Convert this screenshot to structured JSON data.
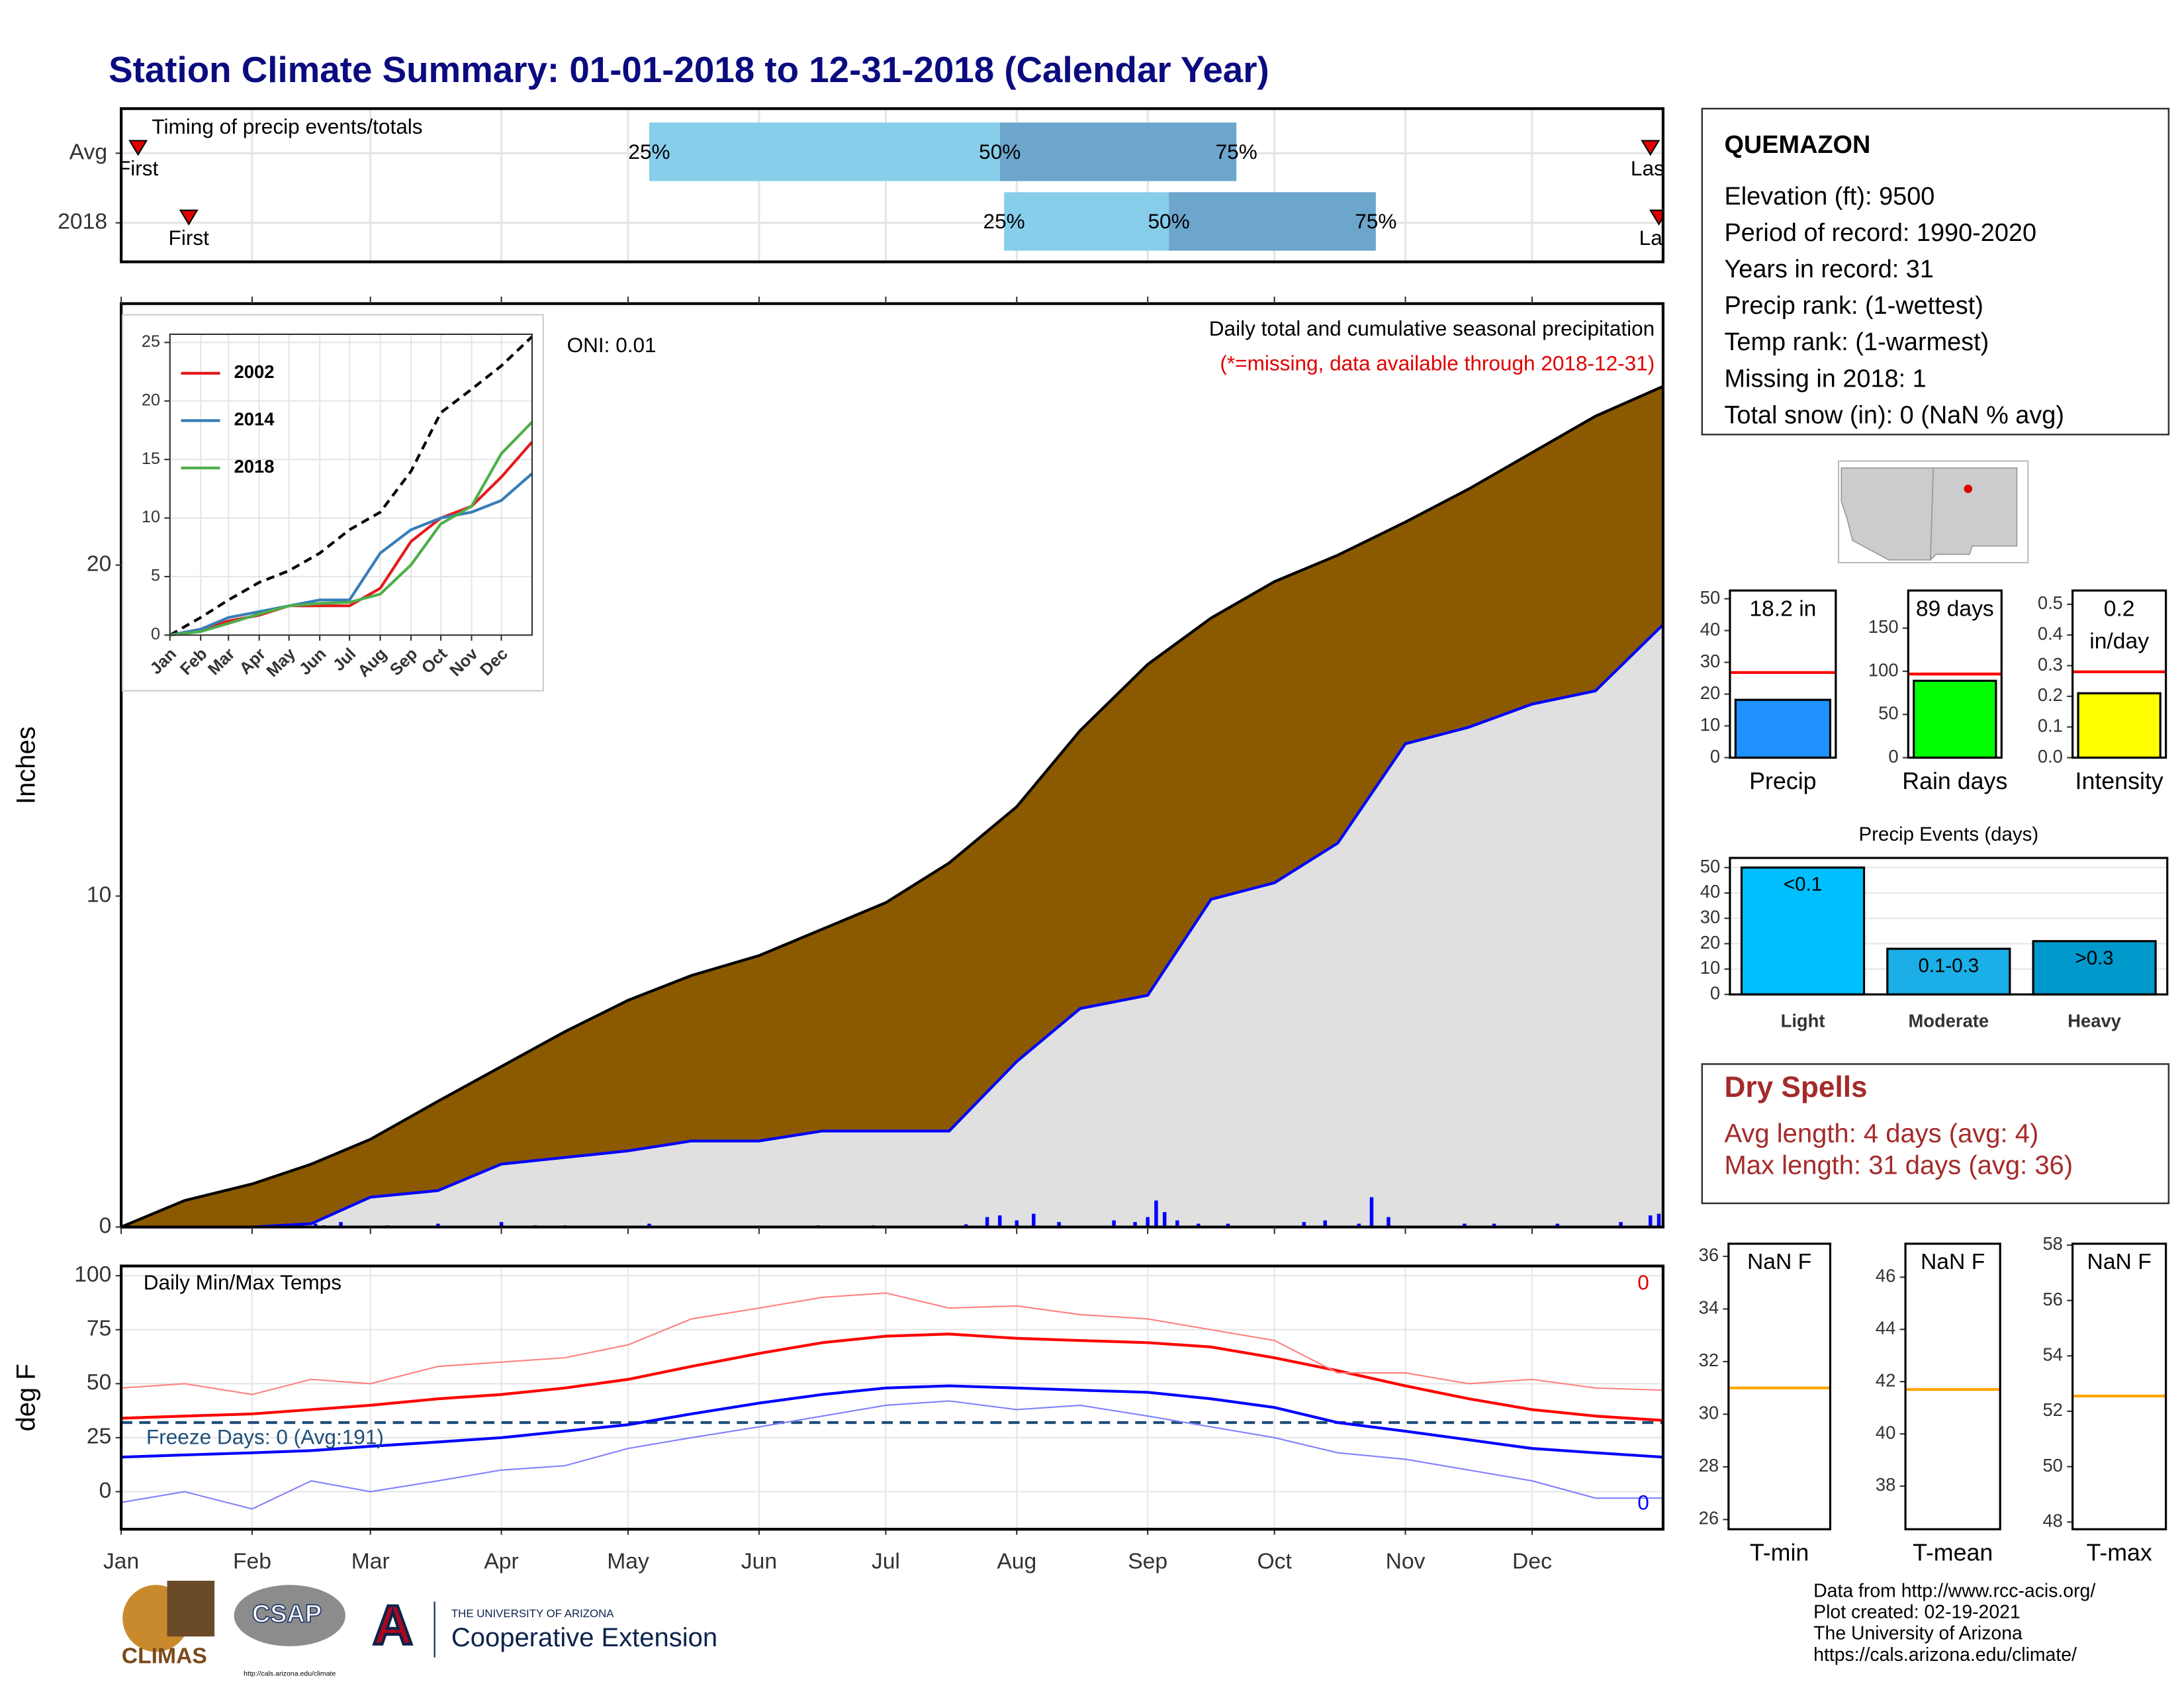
{
  "title": "Station Climate Summary: 01-01-2018 to 12-31-2018 (Calendar Year)",
  "chart_data": [
    {
      "type": "timing",
      "title": "Timing of precip events/totals",
      "categories": [
        "Avg",
        "2018"
      ],
      "xlim": [
        0,
        365
      ],
      "xticks": [
        0,
        31,
        59,
        90,
        120,
        151,
        181,
        212,
        243,
        273,
        304,
        334
      ],
      "first": [
        4,
        16
      ],
      "q25": [
        125,
        209
      ],
      "q50": [
        208,
        248
      ],
      "q75": [
        264,
        297
      ],
      "last": [
        362,
        364
      ],
      "first_label": "First",
      "last_label": "Last",
      "quartile_labels": [
        "25%",
        "50%",
        "75%"
      ],
      "colors": [
        "#87CEEB",
        "#6CA6CD"
      ],
      "marker_color": "#E00000"
    },
    {
      "type": "area",
      "title": "Daily total and cumulative seasonal precipitation",
      "subtitle": "(*=missing, data available through 2018-12-31)",
      "annotation": "ONI: 0.01",
      "ylabel": "Inches",
      "xlim": [
        0,
        365
      ],
      "xticks": [
        0,
        31,
        59,
        90,
        120,
        151,
        181,
        212,
        243,
        273,
        304,
        334
      ],
      "ylim": [
        0,
        27.9
      ],
      "yticks": [
        0,
        10,
        20
      ],
      "x": [
        0,
        15,
        31,
        45,
        59,
        75,
        90,
        105,
        120,
        135,
        151,
        166,
        181,
        196,
        212,
        227,
        243,
        258,
        273,
        288,
        304,
        319,
        334,
        349,
        365
      ],
      "series": [
        {
          "color": "#8B5A00",
          "values": [
            0,
            0.8,
            1.3,
            1.9,
            2.65,
            3.8,
            4.85,
            5.9,
            6.85,
            7.6,
            8.2,
            9.0,
            9.8,
            11.0,
            12.7,
            15.0,
            17.0,
            18.4,
            19.5,
            20.3,
            21.3,
            22.3,
            23.4,
            24.5,
            25.4
          ]
        },
        {
          "color": "#0000FF",
          "fill": "#E0E0E0",
          "values": [
            0,
            0,
            0,
            0.1,
            0.9,
            1.1,
            1.9,
            2.1,
            2.3,
            2.6,
            2.6,
            2.9,
            2.9,
            2.9,
            5.0,
            6.6,
            7.0,
            9.9,
            10.4,
            11.6,
            14.6,
            15.1,
            15.8,
            16.2,
            18.2
          ]
        }
      ],
      "daily": {
        "color": "#0000FF",
        "x": [
          41,
          46,
          48,
          52,
          63,
          75,
          90,
          98,
          105,
          125,
          165,
          178,
          200,
          205,
          208,
          212,
          216,
          222,
          235,
          240,
          243,
          245,
          247,
          250,
          255,
          262,
          280,
          285,
          293,
          296,
          300,
          318,
          325,
          340,
          355,
          362,
          364
        ],
        "values": [
          0.05,
          0.1,
          0.05,
          0.15,
          0.05,
          0.1,
          0.15,
          0.05,
          0.05,
          0.1,
          0.05,
          0.05,
          0.08,
          0.3,
          0.35,
          0.2,
          0.4,
          0.15,
          0.2,
          0.15,
          0.3,
          0.8,
          0.45,
          0.2,
          0.1,
          0.1,
          0.15,
          0.2,
          0.1,
          0.9,
          0.3,
          0.1,
          0.1,
          0.1,
          0.15,
          0.35,
          0.4
        ]
      }
    },
    {
      "type": "line",
      "xlim": [
        0,
        365
      ],
      "xticks": [
        {
          "value": 0,
          "label": "Jan"
        },
        {
          "value": 31,
          "label": "Feb"
        },
        {
          "value": 59,
          "label": "Mar"
        },
        {
          "value": 90,
          "label": "Apr"
        },
        {
          "value": 120,
          "label": "May"
        },
        {
          "value": 151,
          "label": "Jun"
        },
        {
          "value": 181,
          "label": "Jul"
        },
        {
          "value": 212,
          "label": "Aug"
        },
        {
          "value": 243,
          "label": "Sep"
        },
        {
          "value": 273,
          "label": "Oct"
        },
        {
          "value": 304,
          "label": "Nov"
        },
        {
          "value": 334,
          "label": "Dec"
        }
      ],
      "ylim": [
        0,
        25.7
      ],
      "yticks": [
        0,
        5,
        10,
        15,
        20,
        25
      ],
      "grid": true,
      "x": [
        0,
        31,
        59,
        90,
        120,
        151,
        181,
        212,
        243,
        273,
        304,
        334,
        365
      ],
      "series": [
        {
          "color": "#000000",
          "dashed": true,
          "values": [
            0,
            1.5,
            3,
            4.5,
            5.5,
            7,
            9,
            10.5,
            14,
            19,
            21,
            23,
            25.5
          ]
        },
        {
          "name": "2002",
          "color": "#E41A1C",
          "values": [
            0,
            0.5,
            1.2,
            1.7,
            2.5,
            2.5,
            2.5,
            4,
            8,
            10,
            11,
            13.5,
            16.5
          ]
        },
        {
          "name": "2014",
          "color": "#377EB8",
          "values": [
            0,
            0.5,
            1.5,
            2,
            2.5,
            3,
            3,
            7,
            9,
            10,
            10.5,
            11.5,
            13.8
          ]
        },
        {
          "name": "2018",
          "color": "#4DAF4A",
          "values": [
            0,
            0.3,
            1,
            1.8,
            2.5,
            2.7,
            2.8,
            3.5,
            6,
            9.5,
            11,
            15.5,
            18.2
          ]
        }
      ]
    },
    {
      "type": "line",
      "title": "Daily Min/Max Temps",
      "annotation": "Freeze Days: 0 (Avg:191)",
      "ylabel": "deg F",
      "xlim": [
        0,
        365
      ],
      "xticks": [
        {
          "value": 0,
          "label": "Jan"
        },
        {
          "value": 31,
          "label": "Feb"
        },
        {
          "value": 59,
          "label": "Mar"
        },
        {
          "value": 90,
          "label": "Apr"
        },
        {
          "value": 120,
          "label": "May"
        },
        {
          "value": 151,
          "label": "Jun"
        },
        {
          "value": 181,
          "label": "Jul"
        },
        {
          "value": 212,
          "label": "Aug"
        },
        {
          "value": 243,
          "label": "Sep"
        },
        {
          "value": 273,
          "label": "Oct"
        },
        {
          "value": 304,
          "label": "Nov"
        },
        {
          "value": 334,
          "label": "Dec"
        }
      ],
      "ylim": [
        -17.4,
        104.5
      ],
      "yticks": [
        0,
        25,
        50,
        75,
        100
      ],
      "grid": true,
      "threshold": 32,
      "threshold_color": "#1F4E79",
      "missing_max": 0,
      "missing_min": 0,
      "x": [
        0,
        15,
        31,
        45,
        59,
        75,
        90,
        105,
        120,
        135,
        151,
        166,
        181,
        196,
        212,
        227,
        243,
        258,
        273,
        288,
        304,
        319,
        334,
        349,
        365
      ],
      "series": [
        {
          "color": "#FF0000",
          "values": [
            34,
            35,
            36,
            38,
            40,
            43,
            45,
            48,
            52,
            58,
            64,
            69,
            72,
            73,
            71,
            70,
            69,
            67,
            62,
            56,
            49,
            43,
            38,
            35,
            33
          ]
        },
        {
          "color": "#0000FF",
          "values": [
            16,
            17,
            18,
            19,
            21,
            23,
            25,
            28,
            31,
            36,
            41,
            45,
            48,
            49,
            48,
            47,
            46,
            43,
            39,
            32,
            28,
            24,
            20,
            18,
            16
          ]
        },
        {
          "color": "#FF8080",
          "values": [
            48,
            50,
            45,
            52,
            50,
            58,
            60,
            62,
            68,
            80,
            85,
            90,
            92,
            85,
            86,
            82,
            80,
            75,
            70,
            55,
            55,
            50,
            52,
            48,
            47
          ]
        },
        {
          "color": "#8080FF",
          "values": [
            -5,
            0,
            -8,
            5,
            0,
            5,
            10,
            12,
            20,
            25,
            30,
            35,
            40,
            42,
            38,
            40,
            35,
            30,
            25,
            18,
            15,
            10,
            5,
            -3,
            -3
          ]
        }
      ]
    },
    {
      "type": "bar",
      "xlabel": "Precip",
      "values": [
        18.2
      ],
      "value_labels": [
        "18.2 in"
      ],
      "color": "#1E90FF",
      "ylim": [
        0,
        52.6
      ],
      "yticks": [
        0,
        10,
        20,
        30,
        40,
        50
      ],
      "avg": 26.8,
      "avg_color": "#FF0000"
    },
    {
      "type": "bar",
      "xlabel": "Rain days",
      "values": [
        89
      ],
      "value_labels": [
        "89 days"
      ],
      "color": "#00FF00",
      "ylim": [
        0,
        193.5
      ],
      "yticks": [
        0,
        50,
        100,
        150
      ],
      "avg": 96.8,
      "avg_color": "#FF0000"
    },
    {
      "type": "bar",
      "xlabel": "Intensity",
      "values": [
        0.21
      ],
      "value_labels": [
        "0.2 in/day"
      ],
      "color": "#FFFF00",
      "ylim": [
        0,
        0.545
      ],
      "yticks": [
        {
          "value": 0,
          "label": "0.0"
        },
        0.1,
        0.2,
        0.3,
        0.4,
        0.5
      ],
      "avg": 0.28,
      "avg_color": "#FF0000"
    },
    {
      "type": "bar",
      "title": "Precip Events (days)",
      "categories": [
        "Light",
        "Moderate",
        "Heavy"
      ],
      "values": [
        50,
        18,
        21
      ],
      "bin_labels": [
        "<0.1",
        "0.1-0.3",
        ">0.3"
      ],
      "colors": [
        "#00BFFF",
        "#1CAEE6",
        "#0099CC"
      ],
      "ylim": [
        0,
        53.8
      ],
      "yticks": [
        0,
        10,
        20,
        30,
        40,
        50
      ],
      "grid": true
    },
    {
      "type": "bar",
      "xlabel": "T-min",
      "values": [
        null
      ],
      "value_labels": [
        "NaN F"
      ],
      "color": "#CCCCCC",
      "ylim": [
        25.63,
        36.48
      ],
      "yticks": [
        26,
        28,
        30,
        32,
        34,
        36
      ],
      "avg": 31.0,
      "avg_color": "#FFA500"
    },
    {
      "type": "bar",
      "xlabel": "T-mean",
      "values": [
        null
      ],
      "value_labels": [
        "NaN F"
      ],
      "color": "#CCCCCC",
      "ylim": [
        36.35,
        47.28
      ],
      "yticks": [
        38,
        40,
        42,
        44,
        46
      ],
      "avg": 41.7,
      "avg_color": "#FFA500"
    },
    {
      "type": "bar",
      "xlabel": "T-max",
      "values": [
        null
      ],
      "value_labels": [
        "NaN F"
      ],
      "color": "#CCCCCC",
      "ylim": [
        47.74,
        58.05
      ],
      "yticks": [
        48,
        50,
        52,
        54,
        56,
        58
      ],
      "avg": 52.55,
      "avg_color": "#FFA500"
    }
  ],
  "station": {
    "name": "QUEMAZON",
    "lines": [
      "Elevation (ft): 9500",
      "Period of record: 1990-2020",
      "Years in record: 31",
      "Precip rank:  (1-wettest)",
      "Temp rank:  (1-warmest)",
      "Missing in 2018: 1",
      "Total snow (in): 0 (NaN % avg)"
    ]
  },
  "dry_spells": {
    "title": "Dry Spells",
    "lines": [
      "Avg length: 4 days (avg: 4)",
      "Max length: 31 days (avg: 36)"
    ]
  },
  "footer": [
    "Data from http://www.rcc-acis.org/",
    "Plot created: 02-19-2021",
    "The University of Arizona",
    "https://cals.arizona.edu/climate/"
  ],
  "logos": {
    "climas": "CLIMAS",
    "csap": "CSAP",
    "csap_url": "http://cals.arizona.edu/climate",
    "ua_letter": "A",
    "ua_name": "THE UNIVERSITY OF ARIZONA",
    "ua_unit": "Cooperative Extension"
  }
}
